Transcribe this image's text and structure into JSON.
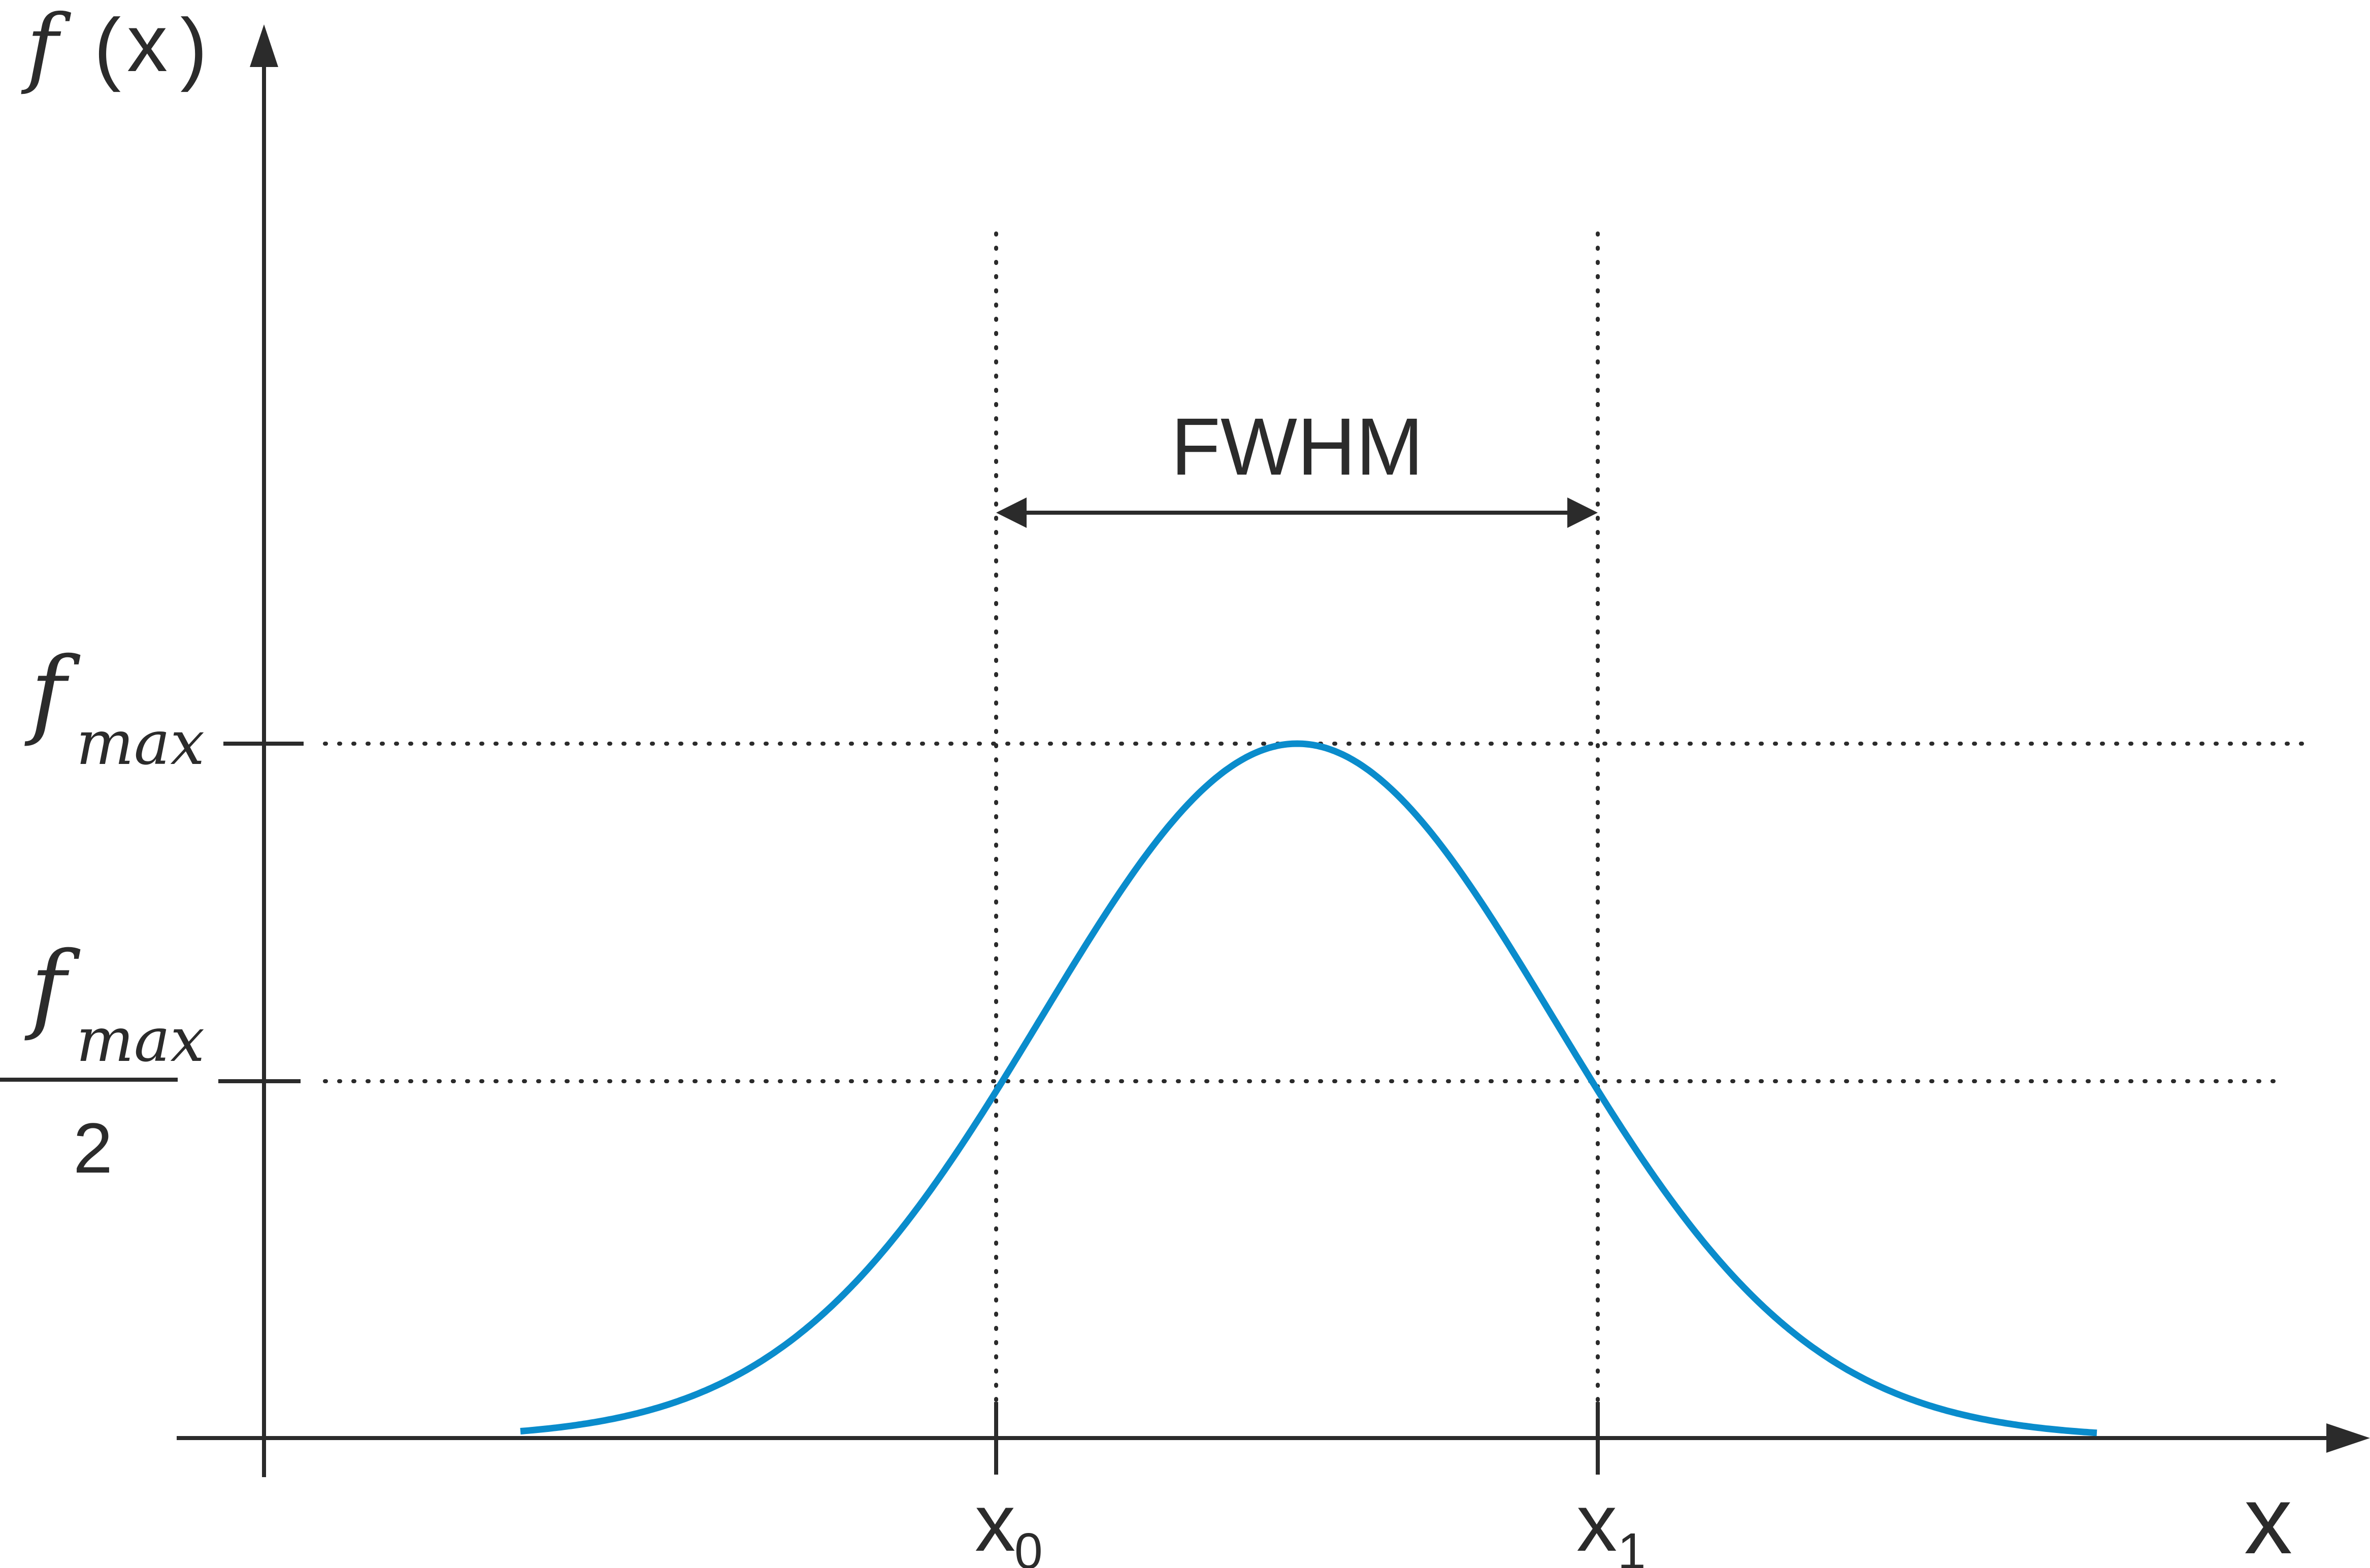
{
  "diagram": {
    "y_axis_label": {
      "f": "f",
      "open": "(",
      "x": "x",
      "close": ")"
    },
    "x_axis_label": "x",
    "fmax_label": {
      "f": "f",
      "sub": "max"
    },
    "half_max_label": {
      "f": "f",
      "sub": "max",
      "denominator": "2"
    },
    "x0_label": {
      "x": "x",
      "sub": "0"
    },
    "x1_label": {
      "x": "x",
      "sub": "1"
    },
    "fwhm_label": "FWHM",
    "curve_color": "#0a8ccc",
    "ink_color": "#2b2b2b"
  }
}
